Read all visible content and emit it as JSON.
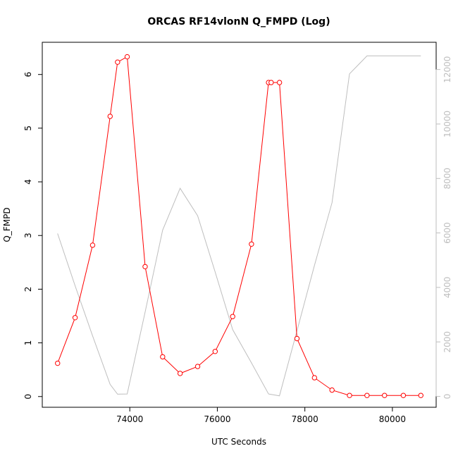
{
  "chart_data": {
    "type": "line",
    "title": "ORCAS RF14vlonN Q_FMPD (Log)",
    "xlabel": "UTC Seconds",
    "ylabel": "Q_FMPD",
    "xlim": [
      72000,
      81000
    ],
    "ylim": [
      -0.2,
      6.6
    ],
    "ylim_right": [
      -400,
      13000
    ],
    "x_ticks": [
      "74000",
      "76000",
      "78000",
      "80000"
    ],
    "y_ticks": [
      "0",
      "1",
      "2",
      "3",
      "4",
      "5",
      "6"
    ],
    "y_right_ticks": [
      "0",
      "2000",
      "4000",
      "6000",
      "8000",
      "10000",
      "12000"
    ],
    "grid": false,
    "series": [
      {
        "axis": "left",
        "color": "#ff0000",
        "markers": "open-circle",
        "x": [
          72350,
          72750,
          73150,
          73550,
          73720,
          73940,
          74350,
          74750,
          75150,
          75550,
          75950,
          76350,
          76780,
          77170,
          77230,
          77420,
          77820,
          78220,
          78620,
          79020,
          79420,
          79820,
          80250,
          80650
        ],
        "y": [
          0.62,
          1.47,
          2.82,
          5.22,
          6.23,
          6.33,
          2.42,
          0.74,
          0.43,
          0.56,
          0.84,
          1.49,
          2.84,
          5.85,
          5.85,
          5.85,
          1.08,
          0.35,
          0.12,
          0.02,
          0.02,
          0.02,
          0.02,
          0.02
        ]
      },
      {
        "axis": "right",
        "color": "#bebebe",
        "markers": "none",
        "x": [
          72350,
          72750,
          73150,
          73550,
          73720,
          73940,
          74350,
          74750,
          75150,
          75550,
          75950,
          76350,
          76780,
          77170,
          77420,
          77820,
          78220,
          78620,
          79020,
          79420,
          79820,
          80250,
          80650
        ],
        "y": [
          5980,
          4060,
          2220,
          440,
          80,
          90,
          3100,
          6100,
          7640,
          6630,
          4570,
          2450,
          1230,
          90,
          20,
          2410,
          4810,
          7110,
          11840,
          12500,
          12500,
          12500,
          12500
        ]
      }
    ]
  }
}
